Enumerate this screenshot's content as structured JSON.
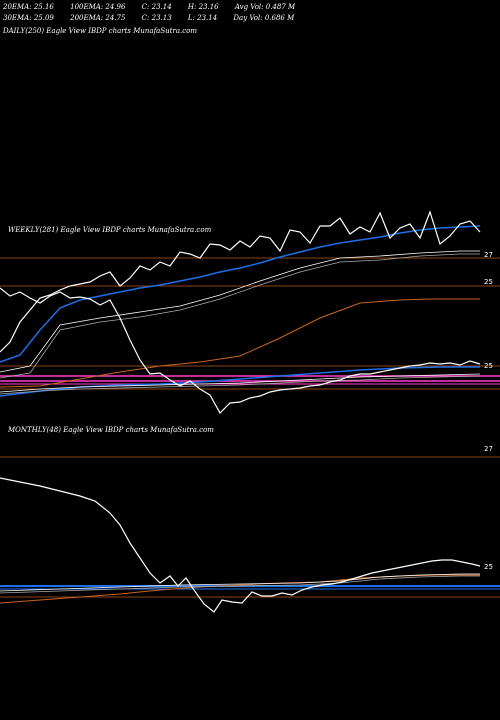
{
  "header": {
    "row1": [
      "20EMA: 25.16",
      "100EMA: 24.96",
      "C: 23.14",
      "H: 23.16",
      "Avg Vol: 0.487  M"
    ],
    "row2": [
      "30EMA: 25.09",
      "200EMA: 24.75",
      "C: 23.13",
      "L: 23.14",
      "Day Vol: 0.686  M"
    ]
  },
  "panels": {
    "daily_label": "DAILY(250) Eagle  View  IBDP charts MunafaSutra.com",
    "weekly_label": "WEEKLY(281) Eagle  View  IBDP charts MunafaSutra.com",
    "monthly_label": "MONTHLY(48) Eagle  View  IBDP charts MunafaSutra.com"
  },
  "colors": {
    "background": "#000000",
    "price": "#ffffff",
    "ema_blue": "#1e6ee6",
    "ema_orange": "#c8641e",
    "ema_pink": "#ff3cc8",
    "grid_brown": "#8b4513"
  },
  "chart_data": [
    {
      "type": "line",
      "name": "weekly",
      "ticks": [
        "27",
        "25"
      ],
      "series": [
        {
          "color_key": "price",
          "values": [
            26.6,
            26.4,
            26.5,
            26.3,
            25.6,
            25.8,
            26.0,
            26.3,
            26.4,
            26.5,
            26.4,
            26.6,
            26.5,
            26.4,
            26.5,
            26.3,
            26.1,
            25.7,
            25.3,
            25.1,
            25.0,
            25.2,
            25.1,
            25.0,
            25.1,
            25.0,
            24.9,
            24.7,
            24.8,
            24.7,
            24.8,
            24.9,
            24.9,
            25.0,
            25.1,
            25.2,
            25.2,
            25.3,
            25.4,
            25.5,
            25.5,
            25.6,
            25.6,
            25.5,
            25.6,
            25.5,
            25.6,
            25.5
          ]
        },
        {
          "color_key": "ema_orange",
          "values": [
            27.1,
            27.1,
            27.1,
            27.1,
            27.1,
            27.1,
            27.1,
            27.1,
            27.1,
            27.1,
            27.1,
            27.1,
            27.1,
            27.1,
            27.1,
            27.1
          ]
        }
      ]
    },
    {
      "type": "line",
      "name": "monthly",
      "ticks": [
        "27",
        "25"
      ],
      "series": [
        {
          "color_key": "price",
          "values": [
            28.2,
            28.1,
            27.9,
            27.8,
            27.6,
            27.3,
            26.8,
            26.1,
            25.5,
            25.2,
            25.4,
            25.3,
            25.2,
            25.1,
            24.9,
            24.8,
            25.0,
            24.9,
            25.1,
            25.0,
            25.1,
            25.2,
            25.3,
            25.4,
            25.5,
            25.6,
            25.6,
            25.7,
            25.7,
            25.6
          ]
        }
      ]
    }
  ]
}
